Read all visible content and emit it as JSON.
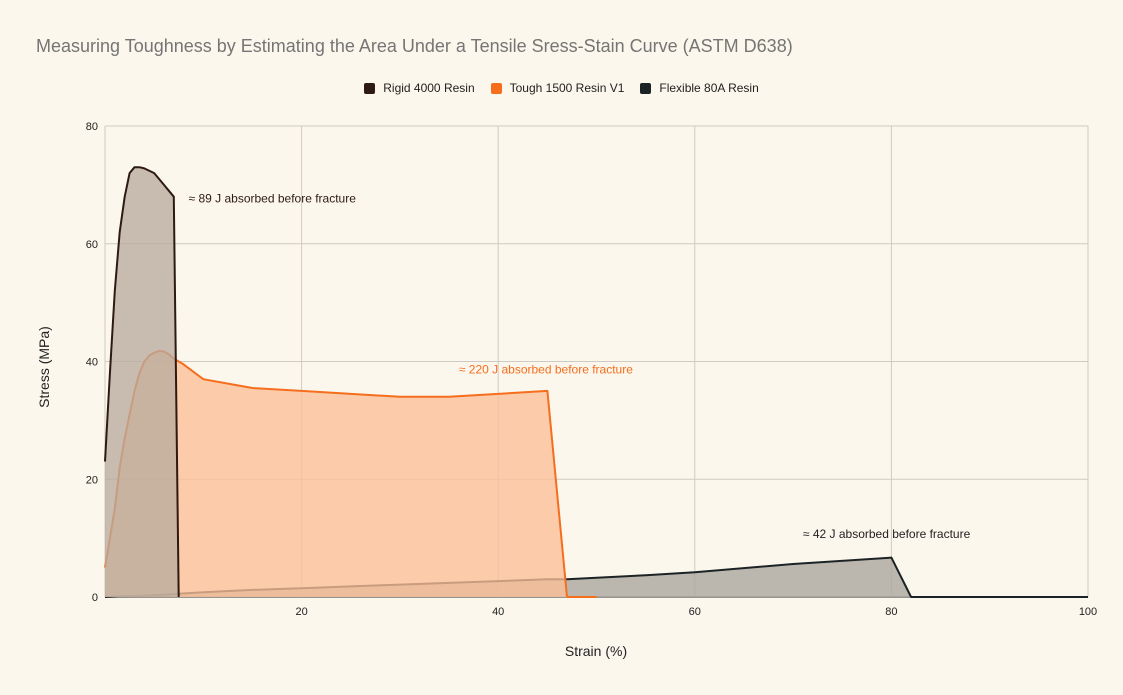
{
  "title": "Measuring Toughness by Estimating the Area Under a Tensile Sress-Stain Curve (ASTM D638)",
  "chart_data": {
    "type": "area",
    "title": "Measuring Toughness by Estimating the Area Under a Tensile Sress-Stain Curve (ASTM D638)",
    "xlabel": "Strain (%)",
    "ylabel": "Stress (MPa)",
    "xlim": [
      0,
      100
    ],
    "ylim": [
      0,
      80
    ],
    "xticks": [
      20,
      40,
      60,
      80,
      100
    ],
    "yticks": [
      0,
      20,
      40,
      60,
      80
    ],
    "grid": true,
    "legend_position": "top",
    "series": [
      {
        "name": "Flexible 80A Resin",
        "color": "#1c2326",
        "fill": "#a8a59e",
        "points": [
          [
            0,
            0
          ],
          [
            5,
            0.3
          ],
          [
            10,
            0.8
          ],
          [
            15,
            1.2
          ],
          [
            20,
            1.5
          ],
          [
            25,
            1.8
          ],
          [
            30,
            2.1
          ],
          [
            35,
            2.4
          ],
          [
            40,
            2.7
          ],
          [
            45,
            3.0
          ],
          [
            47,
            3.0
          ],
          [
            55,
            3.7
          ],
          [
            60,
            4.2
          ],
          [
            70,
            5.6
          ],
          [
            80,
            6.7
          ],
          [
            82,
            0
          ],
          [
            100,
            0
          ]
        ]
      },
      {
        "name": "Tough 1500 Resin V1",
        "color": "#f56e1e",
        "fill": "#fbbf97",
        "points": [
          [
            0,
            5
          ],
          [
            1,
            15
          ],
          [
            1.5,
            22
          ],
          [
            2,
            27
          ],
          [
            2.5,
            31
          ],
          [
            3,
            35
          ],
          [
            3.5,
            38
          ],
          [
            4,
            40
          ],
          [
            4.5,
            41
          ],
          [
            5,
            41.5
          ],
          [
            5.5,
            41.8
          ],
          [
            6,
            41.7
          ],
          [
            6.5,
            41.2
          ],
          [
            7,
            40.5
          ],
          [
            8,
            39.5
          ],
          [
            10,
            37
          ],
          [
            15,
            35.5
          ],
          [
            20,
            35
          ],
          [
            25,
            34.5
          ],
          [
            30,
            34
          ],
          [
            35,
            34
          ],
          [
            40,
            34.5
          ],
          [
            45,
            35
          ],
          [
            47,
            0
          ],
          [
            50,
            0
          ]
        ]
      },
      {
        "name": "Rigid 4000 Resin",
        "color": "#2d1a13",
        "fill": "#b9aa9d",
        "points": [
          [
            0,
            23
          ],
          [
            0.5,
            38
          ],
          [
            1,
            52
          ],
          [
            1.5,
            62
          ],
          [
            2,
            68
          ],
          [
            2.5,
            72
          ],
          [
            3,
            73
          ],
          [
            3.5,
            73
          ],
          [
            4,
            72.8
          ],
          [
            5,
            72
          ],
          [
            6,
            70
          ],
          [
            6.5,
            69
          ],
          [
            7,
            68
          ],
          [
            7.5,
            0
          ]
        ]
      }
    ],
    "legend_order": [
      "Rigid 4000 Resin",
      "Tough 1500 Resin V1",
      "Flexible 80A Resin"
    ],
    "annotations": [
      {
        "text": "≈ 89 J absorbed before fracture",
        "x": 8.5,
        "y": 67,
        "color": "#2d1a13"
      },
      {
        "text": "≈ 220 J absorbed before fracture",
        "x": 36,
        "y": 38,
        "color": "#f56e1e"
      },
      {
        "text": "≈ 42 J absorbed before fracture",
        "x": 71,
        "y": 10,
        "color": "#222222"
      }
    ]
  }
}
